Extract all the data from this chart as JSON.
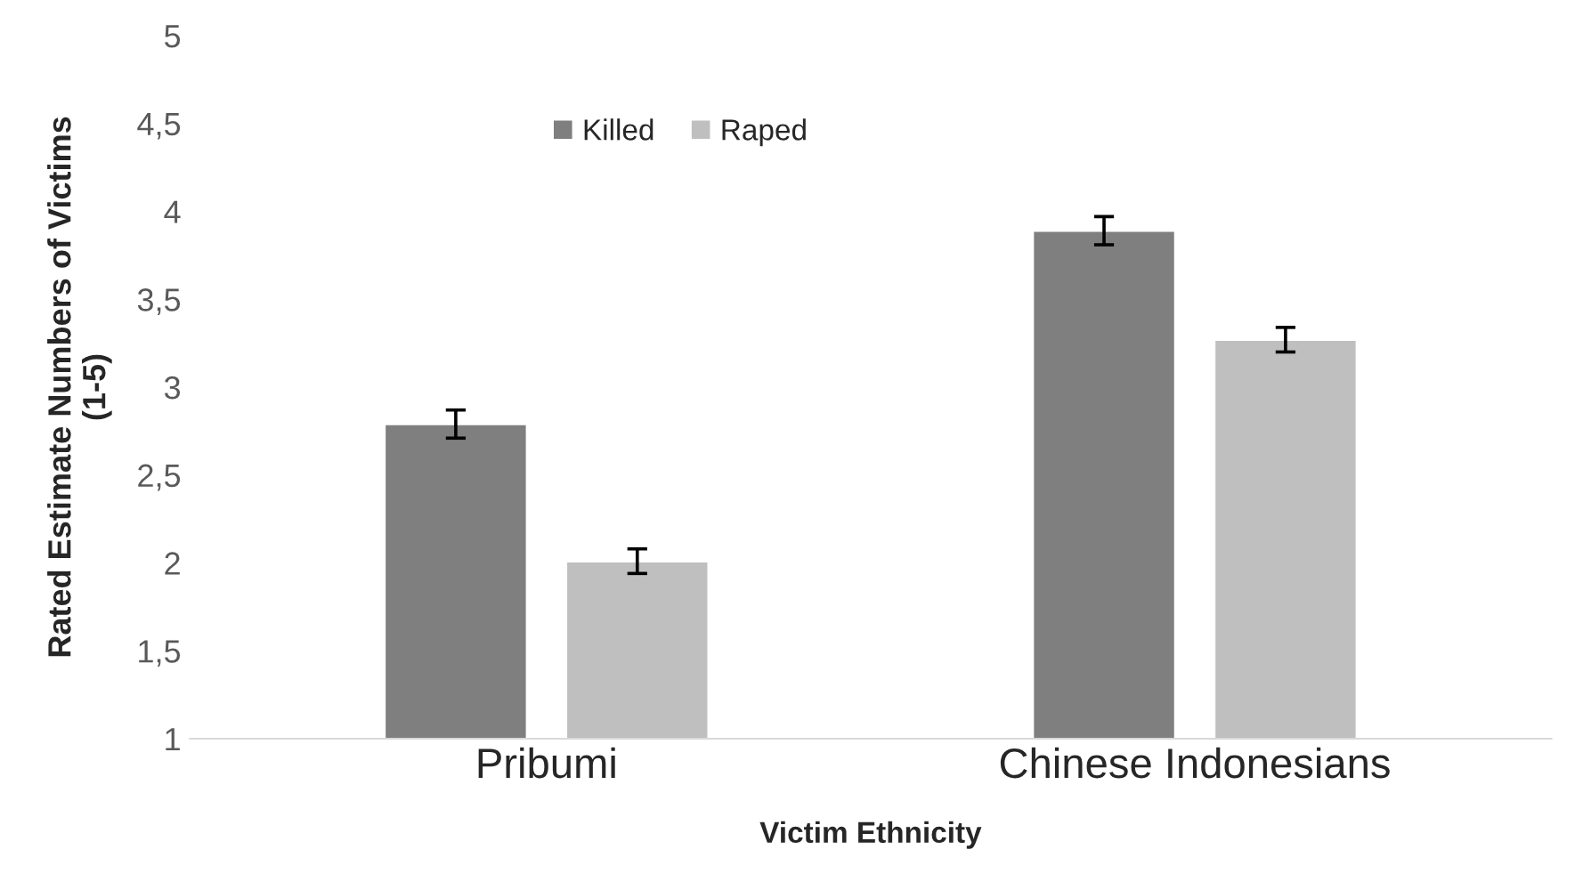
{
  "chart_data": {
    "type": "bar",
    "xlabel": "Victim Ethnicity",
    "ylabel": "Rated Estimate Numbers of Victims\n(1-5)",
    "categories": [
      "Pribumi",
      "Chinese Indonesians"
    ],
    "series": [
      {
        "name": "Killed",
        "color": "#7f7f7f",
        "values": [
          2.79,
          3.89
        ],
        "errors": [
          0.08,
          0.08
        ]
      },
      {
        "name": "Raped",
        "color": "#bfbfbf",
        "values": [
          2.01,
          3.27
        ],
        "errors": [
          0.07,
          0.07
        ]
      }
    ],
    "ylim": [
      1,
      5
    ],
    "yticks": [
      1,
      {
        "value": 1.5,
        "label": "1,5"
      },
      2,
      {
        "value": 2.5,
        "label": "2,5"
      },
      3,
      {
        "value": 3.5,
        "label": "3,5"
      },
      4,
      {
        "value": 4.5,
        "label": "4,5"
      },
      5
    ],
    "grid": false,
    "legend": "top"
  }
}
